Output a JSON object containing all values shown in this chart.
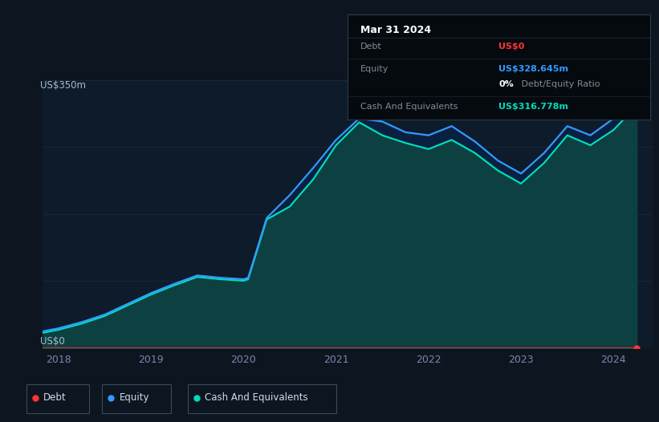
{
  "bg_color": "#0d1520",
  "plot_bg_color": "#0d1b2a",
  "grid_color": "#1a2a3a",
  "ylabel": "US$350m",
  "y0_label": "US$0",
  "ylim": [
    0,
    350
  ],
  "xlim": [
    2017.83,
    2024.42
  ],
  "xticks": [
    2018,
    2019,
    2020,
    2021,
    2022,
    2023,
    2024
  ],
  "debt_color": "#ff3333",
  "equity_color": "#3399ff",
  "cash_color": "#00ddbb",
  "years": [
    2017.83,
    2018.0,
    2018.25,
    2018.5,
    2018.75,
    2019.0,
    2019.25,
    2019.5,
    2019.75,
    2020.0,
    2020.05,
    2020.25,
    2020.5,
    2020.75,
    2021.0,
    2021.25,
    2021.5,
    2021.75,
    2022.0,
    2022.25,
    2022.5,
    2022.75,
    2023.0,
    2023.25,
    2023.5,
    2023.75,
    2024.0,
    2024.25
  ],
  "debt": [
    0,
    0,
    0,
    0,
    0,
    0,
    0,
    0,
    0,
    0,
    0,
    0,
    0,
    0,
    0,
    0,
    0,
    0,
    0,
    0,
    0,
    0,
    0,
    0,
    0,
    0,
    0,
    0
  ],
  "equity": [
    22,
    26,
    34,
    44,
    58,
    72,
    84,
    95,
    92,
    90,
    92,
    170,
    200,
    235,
    272,
    300,
    296,
    282,
    278,
    290,
    270,
    245,
    228,
    255,
    290,
    278,
    300,
    328.645
  ],
  "cash": [
    20,
    24,
    32,
    42,
    56,
    70,
    82,
    93,
    90,
    88,
    90,
    168,
    185,
    220,
    265,
    295,
    278,
    268,
    260,
    272,
    255,
    232,
    215,
    242,
    278,
    265,
    285,
    316.778
  ],
  "info_box": {
    "title": "Mar 31 2024",
    "debt_label": "Debt",
    "debt_value": "US$0",
    "debt_value_color": "#ff3333",
    "equity_label": "Equity",
    "equity_value": "US$328.645m",
    "equity_value_color": "#3399ff",
    "ratio_bold": "0%",
    "ratio_rest": " Debt/Equity Ratio",
    "cash_label": "Cash And Equivalents",
    "cash_value": "US$316.778m",
    "cash_value_color": "#00ddbb",
    "bg_color": "#050a0f",
    "border_color": "#2a3a4a",
    "label_color": "#888899",
    "title_color": "#ffffff"
  },
  "legend_items": [
    {
      "label": "Debt",
      "color": "#ff3333"
    },
    {
      "label": "Equity",
      "color": "#3399ff"
    },
    {
      "label": "Cash And Equivalents",
      "color": "#00ddbb"
    }
  ]
}
